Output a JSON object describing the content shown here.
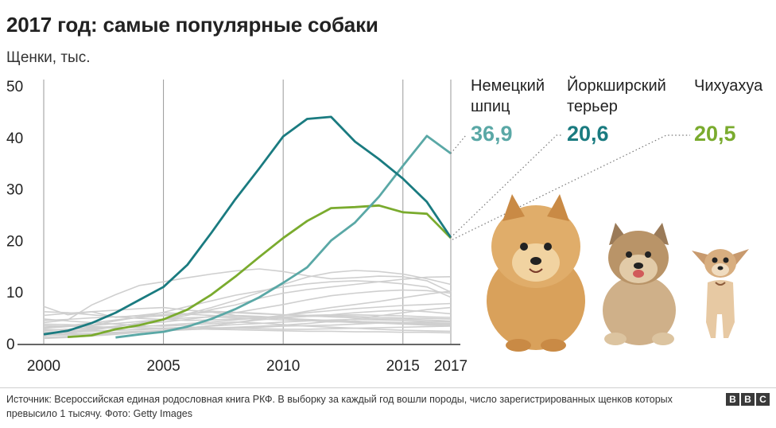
{
  "header": {
    "title": "2017 год: самые популярные собаки",
    "subtitle": "Щенки, тыс."
  },
  "breeds": [
    {
      "name_line1": "Немецкий",
      "name_line2": "шпиц",
      "value": "36,9",
      "color": "#5aa8a6"
    },
    {
      "name_line1": "Йоркширский",
      "name_line2": "терьер",
      "value": "20,6",
      "color": "#1a7b80"
    },
    {
      "name_line1": "Чихуахуа",
      "name_line2": "",
      "value": "20,5",
      "color": "#7aab2e"
    }
  ],
  "chart_data": {
    "type": "line",
    "ylim": [
      0,
      50
    ],
    "yticks": [
      0,
      10,
      20,
      30,
      40,
      50
    ],
    "xlim": [
      2000,
      2017
    ],
    "xticks": [
      2000,
      2005,
      2010,
      2015,
      2017
    ],
    "grid": "vertical lines at x ticks",
    "series": [
      {
        "name": "Немецкий шпиц",
        "color": "#5aa8a6",
        "points": [
          [
            2003,
            1.2
          ],
          [
            2004,
            1.8
          ],
          [
            2005,
            2.3
          ],
          [
            2006,
            3.3
          ],
          [
            2007,
            4.8
          ],
          [
            2008,
            6.7
          ],
          [
            2009,
            9.0
          ],
          [
            2010,
            11.8
          ],
          [
            2011,
            14.8
          ],
          [
            2012,
            20.0
          ],
          [
            2013,
            23.5
          ],
          [
            2014,
            28.5
          ],
          [
            2015,
            34.5
          ],
          [
            2016,
            40.3
          ],
          [
            2017,
            36.9
          ]
        ]
      },
      {
        "name": "Йоркширский терьер",
        "color": "#1a7b80",
        "points": [
          [
            2000,
            1.8
          ],
          [
            2001,
            2.5
          ],
          [
            2002,
            4.0
          ],
          [
            2003,
            6.0
          ],
          [
            2004,
            8.5
          ],
          [
            2005,
            11.0
          ],
          [
            2006,
            15.3
          ],
          [
            2007,
            21.5
          ],
          [
            2008,
            28.0
          ],
          [
            2009,
            34.0
          ],
          [
            2010,
            40.2
          ],
          [
            2011,
            43.6
          ],
          [
            2012,
            44.0
          ],
          [
            2013,
            39.2
          ],
          [
            2014,
            35.8
          ],
          [
            2015,
            32.0
          ],
          [
            2016,
            27.5
          ],
          [
            2017,
            20.6
          ]
        ]
      },
      {
        "name": "Чихуахуа",
        "color": "#7aab2e",
        "points": [
          [
            2001,
            1.3
          ],
          [
            2002,
            1.6
          ],
          [
            2003,
            2.8
          ],
          [
            2004,
            3.6
          ],
          [
            2005,
            4.7
          ],
          [
            2006,
            6.6
          ],
          [
            2007,
            9.5
          ],
          [
            2008,
            13.0
          ],
          [
            2009,
            16.8
          ],
          [
            2010,
            20.5
          ],
          [
            2011,
            23.8
          ],
          [
            2012,
            26.3
          ],
          [
            2013,
            26.5
          ],
          [
            2014,
            26.8
          ],
          [
            2015,
            25.5
          ],
          [
            2016,
            25.2
          ],
          [
            2017,
            20.5
          ]
        ]
      }
    ],
    "background_series": [
      [
        7.2,
        5.6,
        6.2,
        5.1,
        5.5,
        6.0,
        5.8,
        6.1,
        5.5,
        5.3,
        5.0,
        4.5,
        4.2,
        4.4,
        4.0,
        3.8,
        3.6,
        3.5
      ],
      [
        4.1,
        4.6,
        7.5,
        9.5,
        11.3,
        12.0,
        12.8,
        13.5,
        14.1,
        14.5,
        14.0,
        13.2,
        12.6,
        12.8,
        13.1,
        13.0,
        12.2,
        10.0
      ],
      [
        5.5,
        5.9,
        6.2,
        6.5,
        6.8,
        7.0,
        6.5,
        6.2,
        6.0,
        5.8,
        5.6,
        5.4,
        5.2,
        5.0,
        4.8,
        4.8,
        4.6,
        4.4
      ],
      [
        3.2,
        3.5,
        4.0,
        4.6,
        5.1,
        5.4,
        5.8,
        6.3,
        6.1,
        5.9,
        5.6,
        5.5,
        5.6,
        6.0,
        6.3,
        6.5,
        6.2,
        5.8
      ],
      [
        1.5,
        2.0,
        2.6,
        3.3,
        4.0,
        4.6,
        5.5,
        6.6,
        7.5,
        8.8,
        9.8,
        10.5,
        11.0,
        11.5,
        12.0,
        12.5,
        12.9,
        13.0
      ],
      [
        3.8,
        3.7,
        3.5,
        3.9,
        4.3,
        4.7,
        5.0,
        5.2,
        5.0,
        4.8,
        4.6,
        4.5,
        4.3,
        4.1,
        4.0,
        3.9,
        3.8,
        3.7
      ],
      [
        2.5,
        2.8,
        3.2,
        3.0,
        3.3,
        3.6,
        3.9,
        4.2,
        4.6,
        5.0,
        5.5,
        6.0,
        6.4,
        6.8,
        7.1,
        7.4,
        7.6,
        7.8
      ],
      [
        2.0,
        2.2,
        2.4,
        2.6,
        2.8,
        3.0,
        3.2,
        3.1,
        3.0,
        2.9,
        2.8,
        2.8,
        2.9,
        3.0,
        3.1,
        3.2,
        3.3,
        3.4
      ],
      [
        4.8,
        4.4,
        4.1,
        3.8,
        3.5,
        3.4,
        3.6,
        3.9,
        4.2,
        4.0,
        3.7,
        3.4,
        3.2,
        3.0,
        2.8,
        2.6,
        2.5,
        2.4
      ],
      [
        1.0,
        1.2,
        1.5,
        1.8,
        2.2,
        2.6,
        3.0,
        3.5,
        4.1,
        4.8,
        5.5,
        6.3,
        7.0,
        7.6,
        8.2,
        8.9,
        9.6,
        10.2
      ],
      [
        3.0,
        3.3,
        3.6,
        4.4,
        5.2,
        6.1,
        7.2,
        8.3,
        9.4,
        10.2,
        11.0,
        11.6,
        12.0,
        12.2,
        12.0,
        11.6,
        11.0,
        9.0
      ],
      [
        2.8,
        2.6,
        2.5,
        2.6,
        2.7,
        2.9,
        3.1,
        3.4,
        3.7,
        3.9,
        4.2,
        4.4,
        4.6,
        4.7,
        4.6,
        4.5,
        4.3,
        4.2
      ],
      [
        1.8,
        1.9,
        2.0,
        2.2,
        2.4,
        2.5,
        2.7,
        2.9,
        3.0,
        3.2,
        3.4,
        3.5,
        3.6,
        3.8,
        4.0,
        4.1,
        4.2,
        4.3
      ],
      [
        6.2,
        6.0,
        5.6,
        5.2,
        4.9,
        4.7,
        4.5,
        4.6,
        4.8,
        5.0,
        5.2,
        5.3,
        5.4,
        5.3,
        5.1,
        5.0,
        4.9,
        4.8
      ],
      [
        1.2,
        1.4,
        1.6,
        1.9,
        2.2,
        2.5,
        2.8,
        3.0,
        3.2,
        3.4,
        3.6,
        3.9,
        4.3,
        4.8,
        5.4,
        6.0,
        6.6,
        7.0
      ],
      [
        2.2,
        2.4,
        2.8,
        3.3,
        4.0,
        4.8,
        5.8,
        7.0,
        8.4,
        9.9,
        11.5,
        12.9,
        13.8,
        14.2,
        14.0,
        13.5,
        12.6,
        11.5
      ],
      [
        3.5,
        3.4,
        3.3,
        3.2,
        3.1,
        3.0,
        2.9,
        2.8,
        2.7,
        2.6,
        2.5,
        2.4,
        2.4,
        2.3,
        2.3,
        2.2,
        2.2,
        2.1
      ],
      [
        1.6,
        1.7,
        1.9,
        2.1,
        2.3,
        2.6,
        3.0,
        3.5,
        4.1,
        4.6,
        5.0,
        5.3,
        5.5,
        5.6,
        5.5,
        5.4,
        5.2,
        5.1
      ],
      [
        4.5,
        4.7,
        5.0,
        5.2,
        5.4,
        5.6,
        5.7,
        5.5,
        5.3,
        5.1,
        4.9,
        4.7,
        4.5,
        4.3,
        4.2,
        4.1,
        4.0,
        3.9
      ],
      [
        2.6,
        2.8,
        3.0,
        3.4,
        3.8,
        4.2,
        4.7,
        5.3,
        6.0,
        6.8,
        7.6,
        8.5,
        9.3,
        9.8,
        10.2,
        10.4,
        10.3,
        9.8
      ]
    ]
  },
  "footer": {
    "source": "Источник: Всероссийская единая родословная книга РКФ. В выборку за каждый год вошли породы, число зарегистрированных щенков которых превысило 1 тысячу. Фото: Getty Images",
    "logo": [
      "B",
      "B",
      "C"
    ]
  }
}
